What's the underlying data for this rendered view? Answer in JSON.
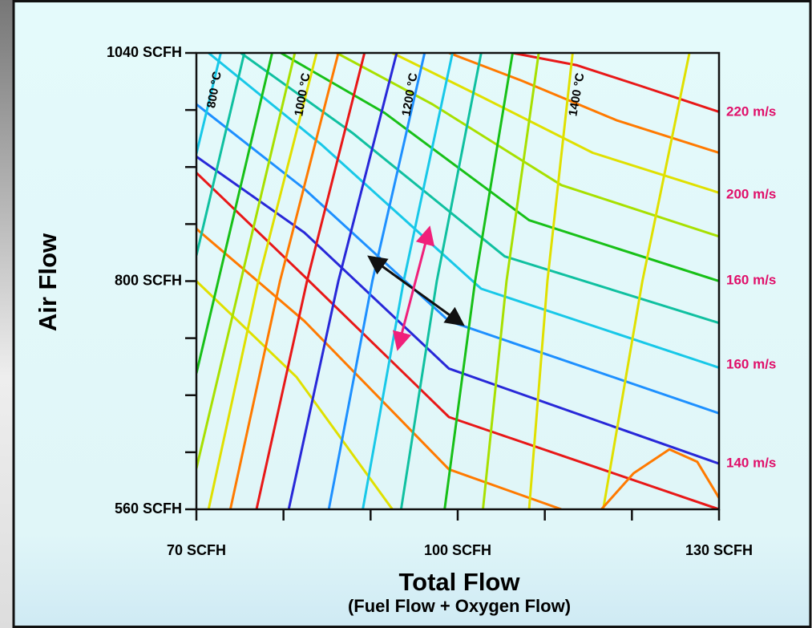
{
  "chart_data": {
    "type": "line",
    "x_label": "Total Flow",
    "x_sublabel": "(Fuel Flow + Oxygen Flow)",
    "y_label": "Air Flow",
    "xlim": [
      70,
      130
    ],
    "ylim": [
      560,
      1040
    ],
    "xticks": [
      {
        "value": 70,
        "label": "70 SCFH"
      },
      {
        "value": 100,
        "label": "100 SCFH"
      },
      {
        "value": 130,
        "label": "130 SCFH"
      }
    ],
    "xminorticks": [
      80,
      90,
      110,
      120
    ],
    "yticks": [
      {
        "value": 560,
        "label": "560 SCFH"
      },
      {
        "value": 800,
        "label": "800 SCFH"
      },
      {
        "value": 1040,
        "label": "1040 SCFH"
      }
    ],
    "yminorticks": [
      620,
      680,
      740,
      860,
      920,
      980
    ],
    "temperature_labels": [
      "800 °C",
      "1000 °C",
      "1200 °C",
      "1400 °C"
    ],
    "velocity_labels": [
      "220 m/s",
      "200 m/s",
      "160 m/s",
      "160 m/s",
      "140 m/s"
    ],
    "series": [
      {
        "color": "#e81818",
        "x": [
          106.3,
          113.7,
          121.1,
          130
        ],
        "y": [
          1040,
          1027,
          1005,
          978
        ]
      },
      {
        "color": "#ff7a00",
        "x": [
          99.0,
          107.3,
          118.3,
          130
        ],
        "y": [
          1040,
          1011,
          969,
          935
        ]
      },
      {
        "color": "#e0e000",
        "x": [
          92.5,
          102.7,
          115.5,
          130
        ],
        "y": [
          1040,
          994,
          935,
          893
        ]
      },
      {
        "color": "#a8e000",
        "x": [
          86.1,
          97.1,
          111.9,
          130
        ],
        "y": [
          1040,
          986,
          901,
          847
        ]
      },
      {
        "color": "#18c018",
        "x": [
          79.7,
          91.6,
          108.2,
          130
        ],
        "y": [
          1040,
          977,
          864,
          800
        ]
      },
      {
        "color": "#10c0a0",
        "x": [
          75.1,
          87.9,
          105.4,
          130
        ],
        "y": [
          1040,
          956,
          826,
          756
        ]
      },
      {
        "color": "#18c8e8",
        "x": [
          71.4,
          84.3,
          102.7,
          130
        ],
        "y": [
          1040,
          944,
          792,
          709
        ]
      },
      {
        "color": "#1e90ff",
        "x": [
          70,
          82.4,
          99.0,
          130
        ],
        "y": [
          986,
          897,
          758,
          661
        ]
      },
      {
        "color": "#2828d8",
        "x": [
          70,
          82.4,
          99.0,
          130
        ],
        "y": [
          931,
          851,
          708,
          608
        ]
      },
      {
        "color": "#e81818",
        "x": [
          70,
          82.4,
          99.0,
          130
        ],
        "y": [
          914,
          805,
          657,
          560
        ]
      },
      {
        "color": "#ff7a00",
        "x": [
          70,
          82.4,
          99.0,
          111.9
        ],
        "y": [
          855,
          758,
          602,
          560
        ]
      },
      {
        "color": "#e0e000",
        "x": [
          70,
          81.5,
          92.5
        ],
        "y": [
          800,
          699,
          560
        ]
      },
      {
        "color": "#18c8e8",
        "x": [
          70,
          72.8
        ],
        "y": [
          934,
          1040
        ]
      },
      {
        "color": "#10c0a0",
        "x": [
          70,
          75.5
        ],
        "y": [
          827,
          1040
        ]
      },
      {
        "color": "#18c018",
        "x": [
          70,
          78.7
        ],
        "y": [
          703,
          1040
        ]
      },
      {
        "color": "#a8e000",
        "x": [
          70,
          81.3
        ],
        "y": [
          603,
          1040
        ]
      },
      {
        "color": "#e0e000",
        "x": [
          71.4,
          77.1,
          83.8
        ],
        "y": [
          560,
          800,
          1040
        ]
      },
      {
        "color": "#ff7a00",
        "x": [
          73.9,
          79.6,
          86.3
        ],
        "y": [
          560,
          800,
          1040
        ]
      },
      {
        "color": "#e81818",
        "x": [
          76.9,
          82.7,
          89.3
        ],
        "y": [
          560,
          800,
          1040
        ]
      },
      {
        "color": "#2828d8",
        "x": [
          80.6,
          86.3,
          93.0
        ],
        "y": [
          560,
          800,
          1040
        ]
      },
      {
        "color": "#1e90ff",
        "x": [
          85.2,
          90.2,
          96.2
        ],
        "y": [
          560,
          800,
          1040
        ]
      },
      {
        "color": "#18c8e8",
        "x": [
          89.1,
          93.8,
          99.4
        ],
        "y": [
          560,
          800,
          1040
        ]
      },
      {
        "color": "#10c0a0",
        "x": [
          93.5,
          97.6,
          102.7
        ],
        "y": [
          560,
          800,
          1040
        ]
      },
      {
        "color": "#18c018",
        "x": [
          98.5,
          102.0,
          106.3
        ],
        "y": [
          560,
          800,
          1040
        ]
      },
      {
        "color": "#a8e000",
        "x": [
          102.9,
          105.6,
          109.3
        ],
        "y": [
          560,
          800,
          1040
        ]
      },
      {
        "color": "#e0e000",
        "x": [
          108.2,
          110.3,
          113.2
        ],
        "y": [
          560,
          800,
          1040
        ]
      },
      {
        "color": "#e0e000",
        "x": [
          116.7,
          121.2,
          126.6
        ],
        "y": [
          560,
          800,
          1040
        ]
      },
      {
        "color": "#ff7a00",
        "x": [
          116.5,
          120.2,
          124.3,
          127.5,
          130
        ],
        "y": [
          560,
          598,
          623,
          610,
          572
        ]
      }
    ]
  }
}
